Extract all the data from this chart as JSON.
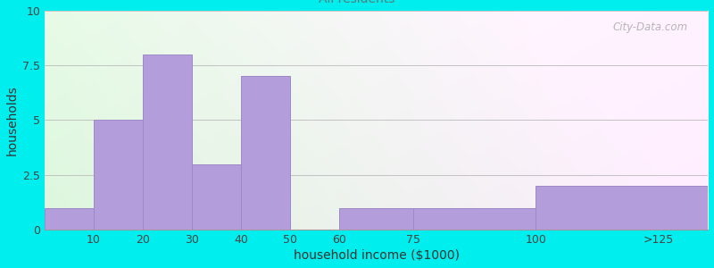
{
  "xlabel": "household income ($1000)",
  "ylabel": "households",
  "background_color": "#00EEEE",
  "bar_color": "#b39ddb",
  "bar_edge_color": "#9e89c8",
  "bar_values": [
    1,
    5,
    8,
    3,
    7,
    0,
    1,
    1,
    2
  ],
  "bar_lefts": [
    0,
    10,
    20,
    30,
    40,
    50,
    60,
    75,
    100
  ],
  "bar_widths": [
    10,
    10,
    10,
    10,
    10,
    10,
    15,
    25,
    35
  ],
  "tick_positions": [
    10,
    20,
    30,
    40,
    50,
    60,
    75,
    100,
    125
  ],
  "tick_labels": [
    "10",
    "20",
    "30",
    "40",
    "50",
    "60",
    "75",
    "100",
    ">125"
  ],
  "xlim_max": 135,
  "ylim": [
    0,
    10
  ],
  "yticks": [
    0,
    2.5,
    5,
    7.5,
    10
  ],
  "title_fontsize": 12,
  "subtitle_fontsize": 10,
  "title_color": "#1a1a1a",
  "subtitle_color": "#5a7a7a",
  "watermark": "City-Data.com",
  "axis_label_fontsize": 10,
  "tick_fontsize": 9
}
